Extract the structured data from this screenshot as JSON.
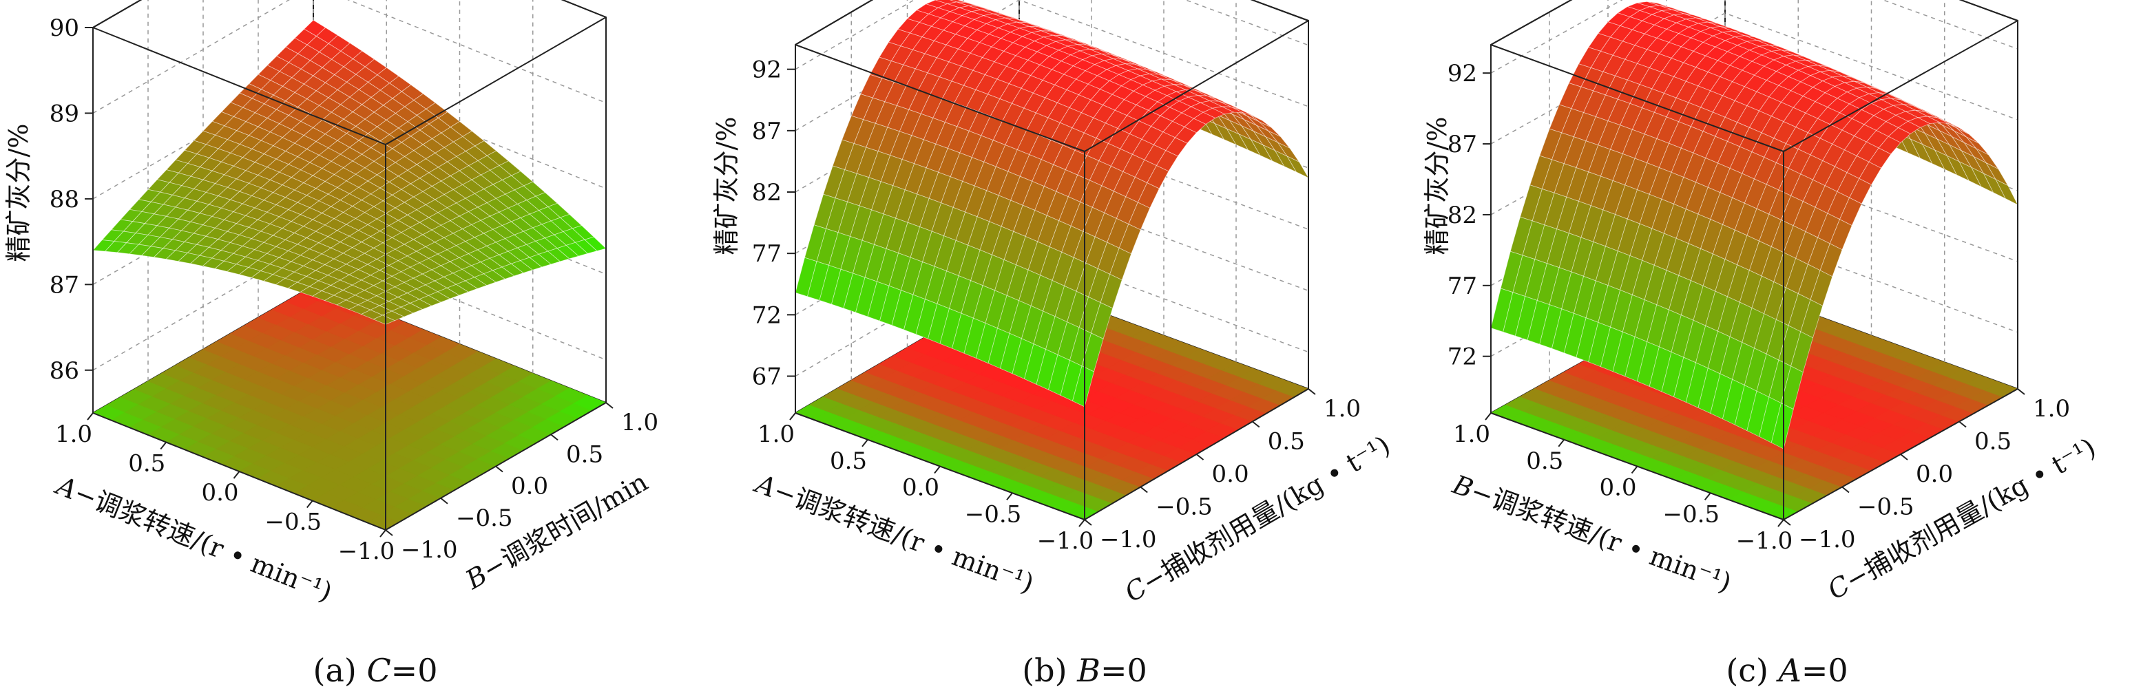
{
  "charts": [
    {
      "id": "a",
      "caption_prefix": "(a) ",
      "caption_var": "C",
      "caption_value": "=0",
      "z_label": "精矿灰分/%",
      "x_label_var": "A",
      "x_label_text": "−调浆转速/(r • min⁻¹)",
      "y_label_var": "B",
      "y_label_text": "−调浆时间/min",
      "z_ticks": [
        "86",
        "87",
        "88",
        "89",
        "90"
      ],
      "x_ticks": [
        "1.0",
        "0.5",
        "0.0",
        "−0.5",
        "−1.0"
      ],
      "y_ticks": [
        "−1.0",
        "−0.5",
        "0.0",
        "0.5",
        "1.0"
      ]
    },
    {
      "id": "b",
      "caption_prefix": "(b) ",
      "caption_var": "B",
      "caption_value": "=0",
      "z_label": "精矿灰分/%",
      "x_label_var": "A",
      "x_label_text": "−调浆转速/(r • min⁻¹)",
      "y_label_var": "C",
      "y_label_text": "−捕收剂用量/(kg • t⁻¹)",
      "z_ticks": [
        "67",
        "72",
        "77",
        "82",
        "87",
        "92"
      ],
      "x_ticks": [
        "1.0",
        "0.5",
        "0.0",
        "−0.5",
        "−1.0"
      ],
      "y_ticks": [
        "−1.0",
        "−0.5",
        "0.0",
        "0.5",
        "1.0"
      ]
    },
    {
      "id": "c",
      "caption_prefix": "(c) ",
      "caption_var": "A",
      "caption_value": "=0",
      "z_label": "精矿灰分/%",
      "x_label_var": "B",
      "x_label_text": "−调浆转速/(r • min⁻¹)",
      "y_label_var": "C",
      "y_label_text": "−捕收剂用量/(kg • t⁻¹)",
      "z_ticks": [
        "72",
        "77",
        "82",
        "87",
        "92"
      ],
      "x_ticks": [
        "1.0",
        "0.5",
        "0.0",
        "−0.5",
        "−1.0"
      ],
      "y_ticks": [
        "−1.0",
        "−0.5",
        "0.0",
        "0.5",
        "1.0"
      ]
    }
  ],
  "chart_data": [
    {
      "type": "surface",
      "xlim": [
        -1,
        1
      ],
      "ylim": [
        -1,
        1
      ],
      "zlim": [
        85.5,
        90
      ],
      "model": {
        "const": 88.0,
        "x": 0.2,
        "y": 0.15,
        "xy": 0.45,
        "x2": -0.15,
        "y2": -0.05
      },
      "colormap": [
        "#33ee00",
        "#ff2020"
      ]
    },
    {
      "type": "surface",
      "xlim": [
        -1,
        1
      ],
      "ylim": [
        -1,
        1
      ],
      "zlim": [
        64,
        94
      ],
      "model": {
        "const": 91.0,
        "x": 0.3,
        "y": 4.0,
        "xy": 0.0,
        "x2": -0.5,
        "y2": -13.0
      },
      "colormap": [
        "#33ee00",
        "#ff2020"
      ]
    },
    {
      "type": "surface",
      "xlim": [
        -1,
        1
      ],
      "ylim": [
        -1,
        1
      ],
      "zlim": [
        68,
        94
      ],
      "model": {
        "const": 91.0,
        "x": 0.5,
        "y": 4.0,
        "xy": 0.0,
        "x2": -0.5,
        "y2": -13.0
      },
      "colormap": [
        "#33ee00",
        "#ff2020"
      ]
    }
  ]
}
